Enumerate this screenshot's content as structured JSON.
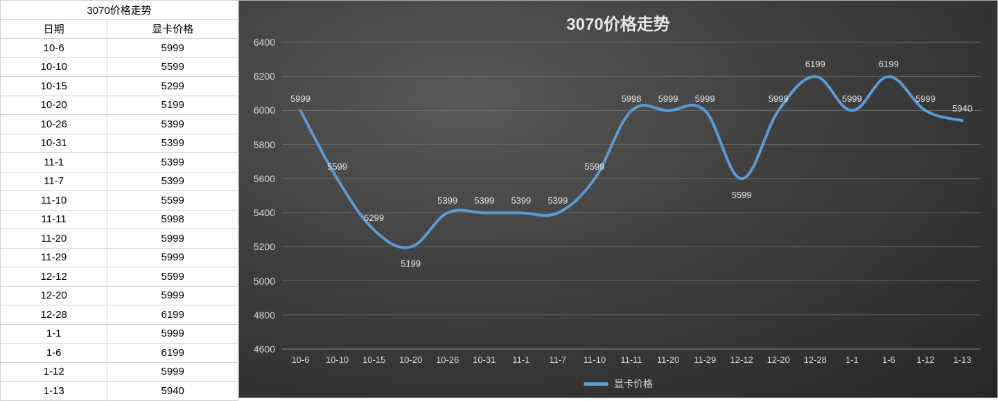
{
  "table": {
    "title": "3070价格走势",
    "columns": [
      "日期",
      "显卡价格"
    ],
    "rows": [
      [
        "10-6",
        5999
      ],
      [
        "10-10",
        5599
      ],
      [
        "10-15",
        5299
      ],
      [
        "10-20",
        5199
      ],
      [
        "10-26",
        5399
      ],
      [
        "10-31",
        5399
      ],
      [
        "11-1",
        5399
      ],
      [
        "11-7",
        5399
      ],
      [
        "11-10",
        5599
      ],
      [
        "11-11",
        5998
      ],
      [
        "11-20",
        5999
      ],
      [
        "11-29",
        5999
      ],
      [
        "12-12",
        5599
      ],
      [
        "12-20",
        5999
      ],
      [
        "12-28",
        6199
      ],
      [
        "1-1",
        5999
      ],
      [
        "1-6",
        6199
      ],
      [
        "1-12",
        5999
      ],
      [
        "1-13",
        5940
      ]
    ]
  },
  "chart": {
    "type": "line",
    "title": "3070价格走势",
    "series_name": "显卡价格",
    "categories": [
      "10-6",
      "10-10",
      "10-15",
      "10-20",
      "10-26",
      "10-31",
      "11-1",
      "11-7",
      "11-10",
      "11-11",
      "11-20",
      "11-29",
      "12-12",
      "12-20",
      "12-28",
      "1-1",
      "1-6",
      "1-12",
      "1-13"
    ],
    "values": [
      5999,
      5599,
      5299,
      5199,
      5399,
      5399,
      5399,
      5399,
      5599,
      5998,
      5999,
      5999,
      5599,
      5999,
      6199,
      5999,
      6199,
      5999,
      5940
    ],
    "ylim": [
      4600,
      6400
    ],
    "ytick_step": 200,
    "line_color": "#5b9bd5",
    "line_width": 4,
    "grid_color": "#6a6a6a",
    "text_color": "#d9d9d9",
    "title_color": "#e6e6e6",
    "title_fontsize": 24,
    "label_fontsize": 13,
    "smooth": true,
    "data_label_positions": [
      "above",
      "above",
      "above",
      "below",
      "above",
      "above",
      "above",
      "above",
      "above",
      "above",
      "above",
      "above",
      "below",
      "above",
      "above",
      "above",
      "above",
      "above",
      "above"
    ]
  }
}
